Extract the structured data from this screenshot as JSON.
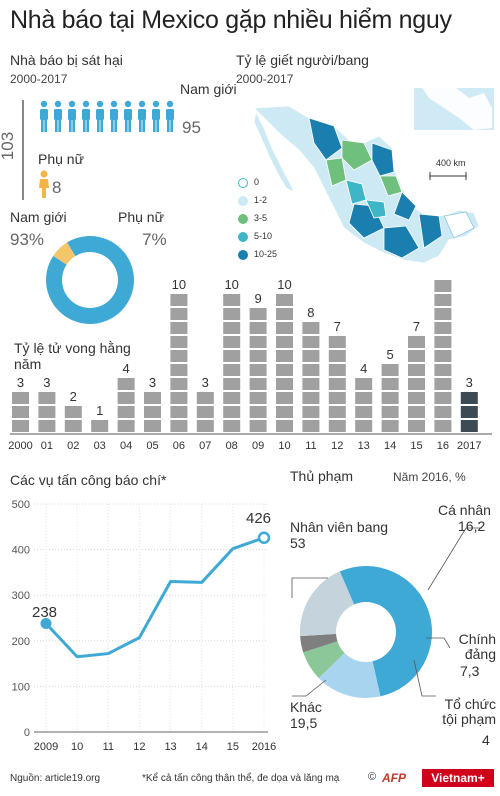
{
  "title": "Nhà báo tại Mexico gặp nhiều hiểm nguy",
  "killed": {
    "heading": "Nhà báo bị sát hại",
    "period": "2000-2017",
    "total": "103",
    "male_label": "Nam giới",
    "male_value": "95",
    "female_label": "Phụ nữ",
    "female_value": "8",
    "male_pct_label": "Nam giới",
    "male_pct": "93%",
    "female_pct_label": "Phụ nữ",
    "female_pct": "7%"
  },
  "map": {
    "heading": "Tỷ lệ giết người/bang",
    "period": "2000-2017",
    "scale": "400 km",
    "legend": [
      {
        "label": "0",
        "color": "#ffffff"
      },
      {
        "label": "1-2",
        "color": "#cdeaf4"
      },
      {
        "label": "3-5",
        "color": "#6fbf7d"
      },
      {
        "label": "5-10",
        "color": "#3fb6c8"
      },
      {
        "label": "10-25",
        "color": "#1a7fae"
      }
    ]
  },
  "deaths_chart_label": "Tỷ lệ tử vong hằng năm",
  "attacks": {
    "heading": "Các vụ tấn công báo chí*",
    "label_start": "238",
    "label_end": "426"
  },
  "perpetrators": {
    "heading": "Thủ phạm",
    "year_label": "Năm 2016, %",
    "labels": [
      {
        "name": "Nhân viên bang",
        "value": "53"
      },
      {
        "name": "Cá nhân",
        "value": "16,2"
      },
      {
        "name": "Chính đảng",
        "value": "7,3"
      },
      {
        "name": "Tổ chức tội phạm",
        "value": "4"
      },
      {
        "name": "Khác",
        "value": "19,5"
      }
    ]
  },
  "footer": {
    "source": "Nguồn: article19.org",
    "note": "*Kể cả tấn công thân thể, đe dọa và lăng mạ",
    "copyright": "©",
    "afp": "AFP",
    "brand": "Vietnam+"
  },
  "chart_data": [
    {
      "type": "pie",
      "categories": [
        "Nam giới",
        "Phụ nữ"
      ],
      "values": [
        93,
        7
      ],
      "colors": [
        "#3fa9d6",
        "#f4c66a"
      ]
    },
    {
      "type": "bar",
      "categories": [
        "2000",
        "01",
        "02",
        "03",
        "04",
        "05",
        "06",
        "07",
        "08",
        "09",
        "10",
        "11",
        "12",
        "13",
        "14",
        "15",
        "16",
        "2017"
      ],
      "values": [
        3,
        3,
        2,
        1,
        4,
        3,
        10,
        3,
        10,
        9,
        10,
        8,
        7,
        4,
        5,
        7,
        11,
        3
      ],
      "title": "Tỷ lệ tử vong hằng năm",
      "colors": {
        "default": "#a0a0a0",
        "last": "#3b4a55"
      }
    },
    {
      "type": "line",
      "title": "Các vụ tấn công báo chí*",
      "x": [
        "2009",
        "10",
        "11",
        "12",
        "13",
        "14",
        "15",
        "2016"
      ],
      "values": [
        238,
        165,
        172,
        207,
        330,
        328,
        402,
        426
      ],
      "ylim": [
        0,
        500
      ],
      "yticks": [
        0,
        100,
        200,
        300,
        400,
        500
      ],
      "grid": true,
      "color": "#3fa9d6"
    },
    {
      "type": "pie",
      "title": "Thủ phạm",
      "categories": [
        "Nhân viên bang",
        "Cá nhân",
        "Chính đảng",
        "Tổ chức tội phạm",
        "Khác"
      ],
      "values": [
        53,
        16.2,
        7.3,
        4,
        19.5
      ],
      "colors": [
        "#3fa9d6",
        "#a9d4ef",
        "#8cc799",
        "#7f7f7f",
        "#c5d3dd"
      ]
    }
  ]
}
